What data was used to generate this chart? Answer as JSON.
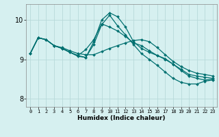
{
  "title": "",
  "xlabel": "Humidex (Indice chaleur)",
  "background_color": "#d6f0f0",
  "grid_color": "#b8dada",
  "line_color": "#007070",
  "x_ticks": [
    0,
    1,
    2,
    3,
    4,
    5,
    6,
    7,
    8,
    9,
    10,
    11,
    12,
    13,
    14,
    15,
    16,
    17,
    18,
    19,
    20,
    21,
    22,
    23
  ],
  "ylim": [
    7.8,
    10.4
  ],
  "yticks": [
    8,
    9,
    10
  ],
  "series": [
    [
      9.15,
      9.55,
      9.5,
      9.35,
      9.3,
      9.22,
      9.15,
      9.12,
      9.12,
      9.2,
      9.28,
      9.35,
      9.42,
      9.48,
      9.5,
      9.45,
      9.3,
      9.12,
      8.95,
      8.82,
      8.72,
      8.65,
      8.62,
      8.58
    ],
    [
      9.15,
      9.55,
      9.5,
      9.35,
      9.28,
      9.18,
      9.1,
      9.25,
      9.5,
      9.9,
      9.82,
      9.72,
      9.58,
      9.42,
      9.35,
      9.22,
      9.1,
      9.0,
      8.88,
      8.75,
      8.62,
      8.58,
      8.55,
      8.52
    ],
    [
      9.15,
      9.55,
      9.5,
      9.35,
      9.28,
      9.18,
      9.08,
      9.05,
      9.38,
      9.88,
      10.12,
      9.85,
      9.62,
      9.38,
      9.15,
      9.0,
      8.85,
      8.68,
      8.52,
      8.42,
      8.38,
      8.38,
      8.45,
      8.48
    ],
    [
      9.15,
      9.55,
      9.5,
      9.35,
      9.28,
      9.18,
      9.1,
      9.05,
      9.45,
      10.0,
      10.18,
      10.08,
      9.82,
      9.45,
      9.28,
      9.18,
      9.1,
      9.02,
      8.88,
      8.72,
      8.58,
      8.52,
      8.48,
      8.5
    ]
  ]
}
